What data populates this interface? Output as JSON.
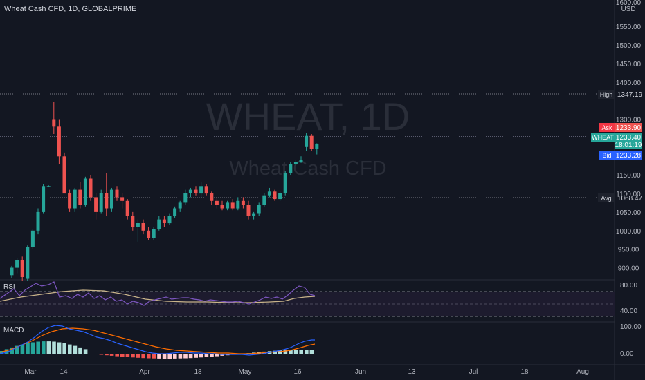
{
  "header": {
    "title": "Wheat Cash CFD, 1D, GLOBALPRIME"
  },
  "watermark": {
    "symbol": "WHEAT, 1D",
    "name": "Wheat Cash CFD"
  },
  "price_axis": {
    "currency": "USD",
    "ticks": [
      "1600.00",
      "1550.00",
      "1500.00",
      "1450.00",
      "1400.00",
      "1300.00",
      "1150.00",
      "1100.00",
      "1050.00",
      "1000.00",
      "950.00",
      "900.00"
    ],
    "tick_values": [
      1600,
      1550,
      1500,
      1450,
      1400,
      1300,
      1150,
      1100,
      1050,
      1000,
      950,
      900
    ]
  },
  "markers": {
    "high": {
      "label": "High",
      "value": "1347.19"
    },
    "ask": {
      "label": "Ask",
      "value": "1233.90"
    },
    "last": {
      "label": "WHEAT",
      "value": "1233.40",
      "countdown": "18:01:19"
    },
    "bid": {
      "label": "Bid",
      "value": "1233.28"
    },
    "avg": {
      "label": "Avg",
      "value": "1068.47"
    }
  },
  "time_axis": {
    "ticks": [
      "Mar",
      "14",
      "Apr",
      "18",
      "May",
      "16",
      "Jun",
      "13",
      "Jul",
      "18",
      "Aug"
    ]
  },
  "rsi": {
    "label": "RSI",
    "ticks": [
      "80.00",
      "40.00"
    ]
  },
  "macd": {
    "label": "MACD",
    "ticks": [
      "100.00",
      "0.00"
    ]
  },
  "colors": {
    "up": "#26a69a",
    "down": "#ef5350",
    "background": "#131722",
    "rsi_line": "#7e57c2",
    "rsi_ma": "#c9b48a",
    "macd_line": "#2962ff",
    "signal_line": "#ff6d00"
  },
  "chart_data": {
    "type": "candlestick",
    "price_unit": "USD",
    "candles": [
      [
        880,
        905,
        872,
        900
      ],
      [
        900,
        925,
        885,
        920
      ],
      [
        920,
        930,
        865,
        875
      ],
      [
        870,
        960,
        865,
        955
      ],
      [
        955,
        1005,
        950,
        1000
      ],
      [
        1000,
        1060,
        990,
        1050
      ],
      [
        1050,
        1125,
        1045,
        1120
      ],
      [
        1120,
        1122,
        1118,
        1120
      ],
      [
        1300,
        1347,
        1260,
        1280
      ],
      [
        1280,
        1300,
        1180,
        1200
      ],
      [
        1200,
        1210,
        1100,
        1100
      ],
      [
        1100,
        1110,
        1050,
        1060
      ],
      [
        1060,
        1115,
        1050,
        1110
      ],
      [
        1110,
        1130,
        1060,
        1070
      ],
      [
        1070,
        1145,
        1065,
        1140
      ],
      [
        1140,
        1150,
        1080,
        1090
      ],
      [
        1090,
        1100,
        1030,
        1050
      ],
      [
        1050,
        1110,
        1045,
        1100
      ],
      [
        1100,
        1155,
        1040,
        1060
      ],
      [
        1060,
        1115,
        1050,
        1110
      ],
      [
        1110,
        1120,
        1080,
        1090
      ],
      [
        1090,
        1100,
        1060,
        1080
      ],
      [
        1080,
        1085,
        1030,
        1040
      ],
      [
        1040,
        1050,
        1000,
        1010
      ],
      [
        1010,
        1030,
        970,
        1020
      ],
      [
        1020,
        1030,
        990,
        1000
      ],
      [
        1000,
        1010,
        975,
        980
      ],
      [
        980,
        1010,
        975,
        1005
      ],
      [
        1005,
        1040,
        1000,
        1030
      ],
      [
        1030,
        1040,
        1010,
        1020
      ],
      [
        1020,
        1045,
        1015,
        1040
      ],
      [
        1040,
        1065,
        1035,
        1060
      ],
      [
        1060,
        1080,
        1050,
        1075
      ],
      [
        1075,
        1110,
        1070,
        1100
      ],
      [
        1100,
        1115,
        1090,
        1110
      ],
      [
        1110,
        1120,
        1095,
        1100
      ],
      [
        1100,
        1130,
        1090,
        1120
      ],
      [
        1120,
        1125,
        1095,
        1100
      ],
      [
        1100,
        1105,
        1070,
        1080
      ],
      [
        1080,
        1090,
        1060,
        1070
      ],
      [
        1070,
        1080,
        1055,
        1060
      ],
      [
        1060,
        1080,
        1055,
        1075
      ],
      [
        1075,
        1085,
        1055,
        1060
      ],
      [
        1060,
        1090,
        1055,
        1080
      ],
      [
        1080,
        1090,
        1060,
        1070
      ],
      [
        1070,
        1080,
        1030,
        1040
      ],
      [
        1040,
        1050,
        1030,
        1045
      ],
      [
        1045,
        1075,
        1040,
        1070
      ],
      [
        1070,
        1100,
        1065,
        1095
      ],
      [
        1095,
        1115,
        1090,
        1105
      ],
      [
        1105,
        1110,
        1080,
        1085
      ],
      [
        1085,
        1105,
        1080,
        1100
      ],
      [
        1100,
        1160,
        1095,
        1155
      ],
      [
        1155,
        1185,
        1150,
        1180
      ],
      [
        1180,
        1190,
        1175,
        1185
      ],
      [
        1185,
        1200,
        1182,
        1190
      ],
      [
        1225,
        1262,
        1215,
        1255
      ],
      [
        1255,
        1260,
        1215,
        1220
      ],
      [
        1220,
        1235,
        1205,
        1233
      ]
    ]
  }
}
